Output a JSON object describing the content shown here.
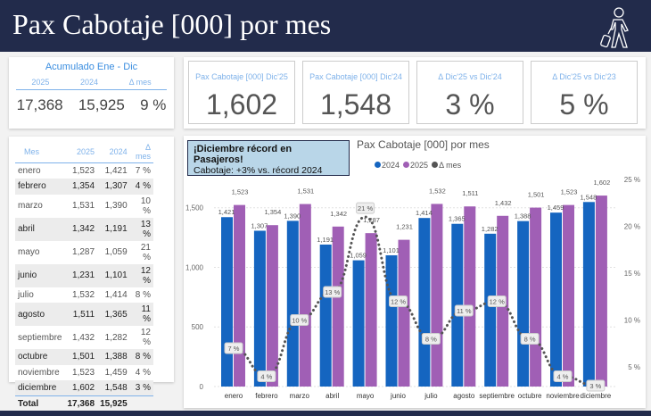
{
  "header": {
    "title": "Pax Cabotaje [000] por mes",
    "icon": "traveler-icon"
  },
  "accumulated": {
    "title": "Acumulado Ene - Dic",
    "cols": [
      "2025",
      "2024",
      "Δ mes"
    ],
    "values": [
      "17,368",
      "15,925",
      "9 %"
    ]
  },
  "kpis": [
    {
      "label": "Pax Cabotaje [000] Dic'25",
      "value": "1,602"
    },
    {
      "label": "Pax Cabotaje [000] Dic'24",
      "value": "1,548"
    },
    {
      "label": "Δ Dic'25 vs Dic'24",
      "value": "3 %"
    },
    {
      "label": "Δ Dic'25 vs Dic'23",
      "value": "5 %"
    }
  ],
  "table": {
    "headers": [
      "Mes",
      "2025",
      "2024",
      "Δ mes"
    ],
    "rows": [
      [
        "enero",
        "1,523",
        "1,421",
        "7 %"
      ],
      [
        "febrero",
        "1,354",
        "1,307",
        "4 %"
      ],
      [
        "marzo",
        "1,531",
        "1,390",
        "10 %"
      ],
      [
        "abril",
        "1,342",
        "1,191",
        "13 %"
      ],
      [
        "mayo",
        "1,287",
        "1,059",
        "21 %"
      ],
      [
        "junio",
        "1,231",
        "1,101",
        "12 %"
      ],
      [
        "julio",
        "1,532",
        "1,414",
        "8 %"
      ],
      [
        "agosto",
        "1,511",
        "1,365",
        "11 %"
      ],
      [
        "septiembre",
        "1,432",
        "1,282",
        "12 %"
      ],
      [
        "octubre",
        "1,501",
        "1,388",
        "8 %"
      ],
      [
        "noviembre",
        "1,523",
        "1,459",
        "4 %"
      ],
      [
        "diciembre",
        "1,602",
        "1,548",
        "3 %"
      ]
    ],
    "total": [
      "Total",
      "17,368",
      "15,925",
      ""
    ]
  },
  "note": {
    "line1": "¡Diciembre récord en Pasajeros!",
    "line2": "Cabotaje: +3% vs. récord 2024"
  },
  "chart_data": {
    "type": "bar",
    "title": "Pax Cabotaje [000] por mes",
    "categories": [
      "enero",
      "febrero",
      "marzo",
      "abril",
      "mayo",
      "junio",
      "julio",
      "agosto",
      "septiembre",
      "octubre",
      "noviembre",
      "diciembre"
    ],
    "series": [
      {
        "name": "2024",
        "type": "bar",
        "axis": "left",
        "color": "#1565c0",
        "values": [
          1421,
          1307,
          1390,
          1191,
          1059,
          1101,
          1414,
          1365,
          1282,
          1388,
          1459,
          1548
        ]
      },
      {
        "name": "2025",
        "type": "bar",
        "axis": "left",
        "color": "#a05fb5",
        "values": [
          1523,
          1354,
          1531,
          1342,
          1287,
          1231,
          1532,
          1511,
          1432,
          1501,
          1523,
          1602
        ]
      },
      {
        "name": "Δ mes",
        "type": "line",
        "axis": "right",
        "style": "dotted",
        "color": "#555555",
        "values": [
          7,
          4,
          10,
          13,
          21,
          12,
          8,
          11,
          12,
          8,
          4,
          3
        ]
      }
    ],
    "left_axis": {
      "ticks": [
        "0",
        "500",
        "1,000",
        "1,500"
      ],
      "ylim": [
        0,
        1670
      ]
    },
    "right_axis": {
      "ticks": [
        "5 %",
        "10 %",
        "15 %",
        "20 %",
        "25 %"
      ],
      "ylim": [
        3,
        26
      ]
    },
    "legend_position": "top",
    "grid": true
  }
}
